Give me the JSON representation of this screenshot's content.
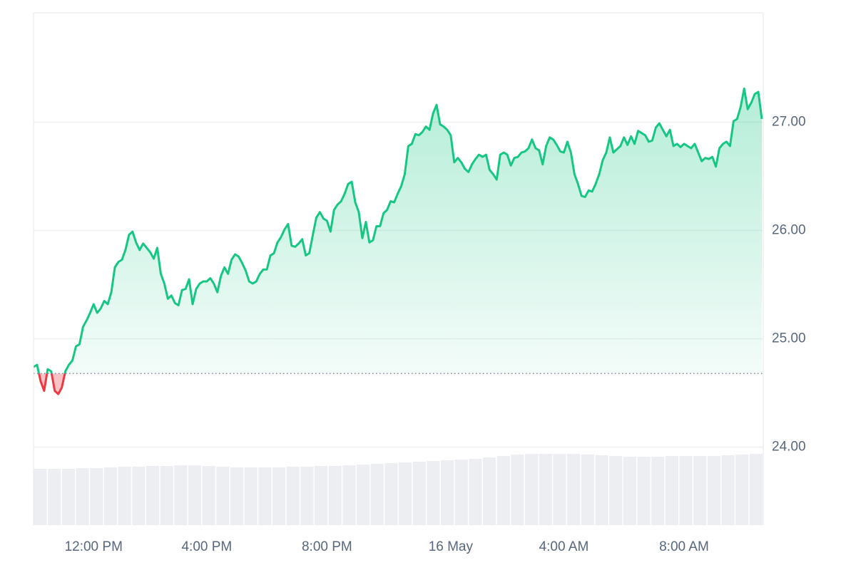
{
  "chart_data": {
    "type": "line",
    "categories": [
      null,
      null,
      null,
      null,
      null,
      null,
      null,
      null,
      null,
      null,
      null,
      null,
      null,
      null,
      null,
      null,
      null,
      "12:00 PM",
      null,
      null,
      null,
      null,
      null,
      null,
      null,
      null,
      null,
      null,
      null,
      null,
      null,
      null,
      null,
      null,
      null,
      null,
      null,
      null,
      null,
      null,
      null,
      null,
      null,
      null,
      null,
      null,
      null,
      null,
      null,
      "4:00 PM",
      null,
      null,
      null,
      null,
      null,
      null,
      null,
      null,
      null,
      null,
      null,
      null,
      null,
      null,
      null,
      null,
      null,
      null,
      null,
      null,
      null,
      null,
      null,
      null,
      null,
      null,
      null,
      null,
      null,
      null,
      null,
      null,
      null,
      "8:00 PM",
      null,
      null,
      null,
      null,
      null,
      null,
      null,
      null,
      null,
      null,
      null,
      null,
      null,
      null,
      null,
      null,
      null,
      null,
      null,
      null,
      null,
      null,
      null,
      null,
      null,
      null,
      null,
      null,
      null,
      null,
      null,
      null,
      null,
      null,
      "16 May",
      null,
      null,
      null,
      null,
      null,
      null,
      null,
      null,
      null,
      null,
      null,
      null,
      null,
      null,
      null,
      null,
      null,
      null,
      null,
      null,
      null,
      null,
      null,
      null,
      null,
      null,
      null,
      null,
      null,
      null,
      null,
      "4:00 AM",
      null,
      null,
      null,
      null,
      null,
      null,
      null,
      null,
      null,
      null,
      null,
      null,
      null,
      null,
      null,
      null,
      null,
      null,
      null,
      null,
      null,
      null,
      null,
      null,
      null,
      null,
      null,
      null,
      null,
      null,
      null,
      null,
      null,
      "8:00 AM",
      null,
      null,
      null,
      null,
      null,
      null,
      null,
      null,
      null,
      null,
      null,
      null,
      null,
      null,
      null,
      null,
      null,
      null,
      null,
      null,
      null,
      null
    ],
    "values": [
      24.74,
      24.76,
      24.61,
      24.52,
      24.72,
      24.7,
      24.52,
      24.49,
      24.55,
      24.7,
      24.76,
      24.8,
      24.93,
      24.95,
      25.11,
      25.17,
      25.24,
      25.32,
      25.24,
      25.28,
      25.35,
      25.32,
      25.43,
      25.66,
      25.71,
      25.73,
      25.82,
      25.96,
      25.99,
      25.89,
      25.82,
      25.88,
      25.84,
      25.8,
      25.74,
      25.84,
      25.6,
      25.51,
      25.37,
      25.4,
      25.33,
      25.31,
      25.45,
      25.46,
      25.55,
      25.32,
      25.46,
      25.51,
      25.53,
      25.53,
      25.56,
      25.51,
      25.43,
      25.58,
      25.66,
      25.6,
      25.73,
      25.78,
      25.76,
      25.7,
      25.63,
      25.53,
      25.51,
      25.53,
      25.6,
      25.64,
      25.64,
      25.77,
      25.79,
      25.89,
      25.94,
      26.01,
      26.06,
      25.86,
      25.85,
      25.88,
      25.92,
      25.77,
      25.79,
      25.96,
      26.12,
      26.17,
      26.11,
      26.09,
      25.99,
      26.19,
      26.24,
      26.27,
      26.34,
      26.43,
      26.45,
      26.26,
      26.17,
      25.93,
      26.08,
      25.89,
      25.91,
      26.04,
      26.04,
      26.16,
      26.19,
      26.27,
      26.26,
      26.34,
      26.41,
      26.52,
      26.78,
      26.8,
      26.89,
      26.88,
      26.91,
      26.96,
      26.93,
      27.08,
      27.16,
      26.98,
      26.96,
      26.93,
      26.88,
      26.63,
      26.67,
      26.63,
      26.57,
      26.54,
      26.61,
      26.66,
      26.7,
      26.68,
      26.7,
      26.56,
      26.52,
      26.47,
      26.7,
      26.72,
      26.7,
      26.6,
      26.67,
      26.68,
      26.72,
      26.73,
      26.76,
      26.84,
      26.76,
      26.74,
      26.61,
      26.78,
      26.86,
      26.84,
      26.79,
      26.73,
      26.72,
      26.82,
      26.72,
      26.52,
      26.43,
      26.32,
      26.31,
      26.37,
      26.36,
      26.43,
      26.52,
      26.65,
      26.72,
      26.86,
      26.72,
      26.75,
      26.78,
      26.86,
      26.79,
      26.87,
      26.8,
      26.92,
      26.9,
      26.88,
      26.82,
      26.83,
      26.95,
      26.99,
      26.93,
      26.87,
      26.93,
      26.78,
      26.8,
      26.77,
      26.8,
      26.78,
      26.76,
      26.8,
      26.72,
      26.64,
      26.67,
      26.66,
      26.68,
      26.59,
      26.76,
      26.8,
      26.82,
      26.78,
      27.01,
      27.03,
      27.14,
      27.31,
      27.12,
      27.18,
      27.26,
      27.28,
      27.03
    ],
    "color": "#16c784",
    "down_color": "#ea3943",
    "baseline": 24.68,
    "ylim": [
      23.28,
      28.01
    ],
    "yticks": [
      {
        "value": 24,
        "label": "24.00"
      },
      {
        "value": 25,
        "label": "25.00"
      },
      {
        "value": 26,
        "label": "26.00"
      },
      {
        "value": 27,
        "label": "27.00"
      }
    ],
    "grid": true,
    "volume": {
      "color": "#eceef2",
      "lim": [
        0,
        100
      ],
      "values": [
        79,
        79,
        79,
        80,
        80,
        81,
        82,
        82,
        83,
        83,
        84,
        84,
        83,
        82,
        81,
        81,
        81,
        81,
        82,
        82,
        83,
        83,
        84,
        85,
        86,
        87,
        88,
        89,
        90,
        91,
        92,
        93,
        95,
        97,
        99,
        100,
        100,
        100,
        100,
        99,
        98,
        97,
        96,
        96,
        96,
        97,
        97,
        97,
        97,
        98,
        99,
        100
      ]
    }
  }
}
